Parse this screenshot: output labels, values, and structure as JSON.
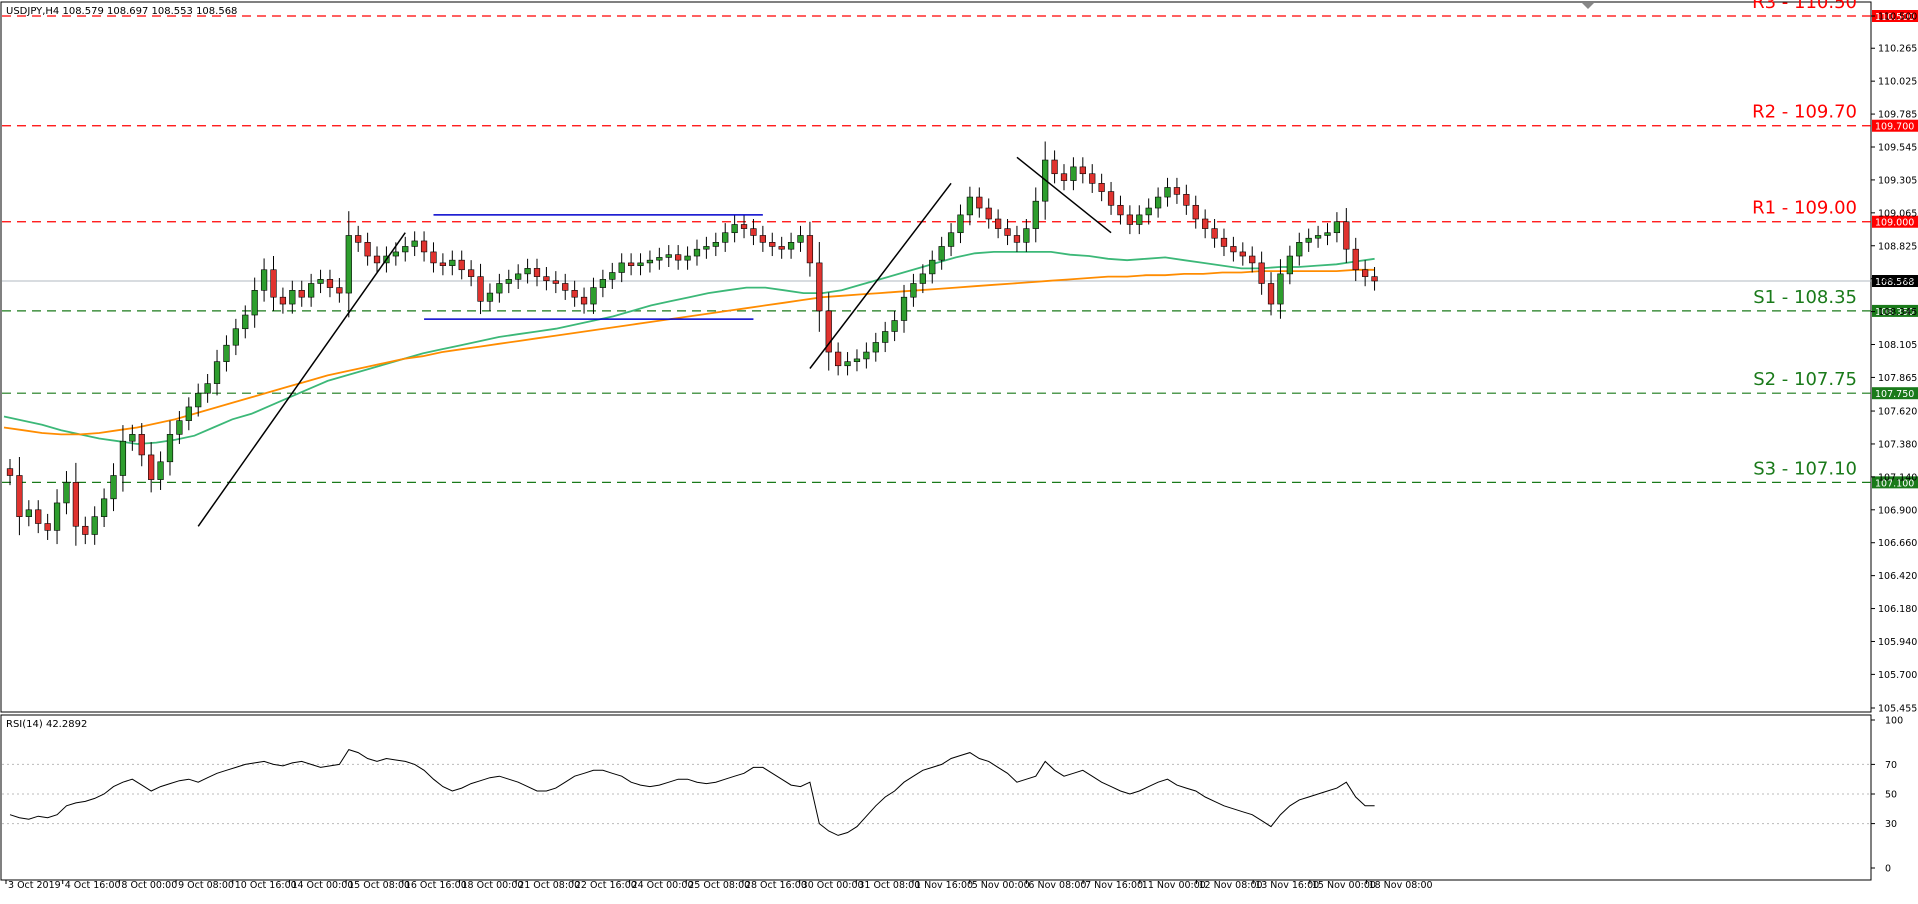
{
  "window": {
    "title": "USDJPY,H4  108.579 108.697 108.553 108.568",
    "rsi_title": "RSI(14) 42.2892"
  },
  "colors": {
    "bull": "#2e9e2e",
    "bear": "#e0332f",
    "resistance": "#ff0000",
    "support": "#1a7a1a",
    "ma_fast": "#3cb878",
    "ma_slow": "#ff8c00",
    "channel": "#0000cc",
    "trendline": "#000000",
    "rsi": "#000000"
  },
  "chart_data": [
    {
      "type": "candlestick",
      "symbol": "USDJPY",
      "timeframe": "H4",
      "title": "USDJPY,H4  108.579 108.697 108.553 108.568",
      "ylim": [
        105.455,
        110.5
      ],
      "yticks": [
        "110.500",
        "110.265",
        "110.025",
        "109.785",
        "109.545",
        "109.305",
        "109.065",
        "108.825",
        "108.585",
        "108.345",
        "108.105",
        "107.865",
        "107.620",
        "107.380",
        "107.140",
        "106.900",
        "106.660",
        "106.420",
        "106.180",
        "105.940",
        "105.700",
        "105.455"
      ],
      "xticks": [
        "3 Oct 2019",
        "4 Oct 16:00",
        "8 Oct 00:00",
        "9 Oct 08:00",
        "10 Oct 16:00",
        "14 Oct 00:00",
        "15 Oct 08:00",
        "16 Oct 16:00",
        "18 Oct 00:00",
        "21 Oct 08:00",
        "22 Oct 16:00",
        "24 Oct 00:00",
        "25 Oct 08:00",
        "28 Oct 16:00",
        "30 Oct 00:00",
        "31 Oct 08:00",
        "1 Nov 16:00",
        "5 Nov 00:00",
        "6 Nov 08:00",
        "7 Nov 16:00",
        "11 Nov 00:00",
        "12 Nov 08:00",
        "13 Nov 16:00",
        "15 Nov 00:00",
        "18 Nov 08:00"
      ],
      "current_price": "108.568",
      "close_series": [
        107.15,
        106.85,
        106.9,
        106.8,
        106.75,
        106.95,
        107.1,
        106.78,
        106.72,
        106.85,
        106.98,
        107.15,
        107.4,
        107.45,
        107.3,
        107.12,
        107.25,
        107.45,
        107.55,
        107.65,
        107.75,
        107.82,
        107.98,
        108.1,
        108.22,
        108.32,
        108.5,
        108.65,
        108.45,
        108.4,
        108.5,
        108.45,
        108.55,
        108.58,
        108.52,
        108.48,
        108.9,
        108.85,
        108.75,
        108.7,
        108.75,
        108.78,
        108.82,
        108.86,
        108.78,
        108.7,
        108.68,
        108.72,
        108.65,
        108.6,
        108.42,
        108.48,
        108.55,
        108.58,
        108.62,
        108.66,
        108.6,
        108.57,
        108.55,
        108.5,
        108.45,
        108.4,
        108.52,
        108.58,
        108.63,
        108.7,
        108.68,
        108.7,
        108.72,
        108.74,
        108.76,
        108.72,
        108.75,
        108.8,
        108.82,
        108.85,
        108.92,
        108.98,
        108.95,
        108.9,
        108.85,
        108.82,
        108.8,
        108.85,
        108.9,
        108.7,
        108.35,
        108.05,
        107.95,
        107.98,
        108.0,
        108.05,
        108.12,
        108.2,
        108.28,
        108.45,
        108.55,
        108.62,
        108.72,
        108.82,
        108.92,
        109.05,
        109.18,
        109.1,
        109.02,
        108.95,
        108.9,
        108.85,
        108.95,
        109.15,
        109.45,
        109.35,
        109.3,
        109.4,
        109.35,
        109.28,
        109.22,
        109.12,
        109.05,
        108.98,
        109.05,
        109.1,
        109.18,
        109.25,
        109.2,
        109.12,
        109.02,
        108.95,
        108.88,
        108.82,
        108.78,
        108.75,
        108.7,
        108.55,
        108.4,
        108.62,
        108.75,
        108.85,
        108.88,
        108.9,
        108.92,
        109.0,
        108.8,
        108.65,
        108.6,
        108.568
      ],
      "series": [
        {
          "name": "",
          "type": "ma",
          "values": [
            107.58,
            107.55,
            107.52,
            107.48,
            107.45,
            107.42,
            107.4,
            107.38,
            107.39,
            107.41,
            107.44,
            107.5,
            107.56,
            107.6,
            107.66,
            107.72,
            107.78,
            107.84,
            107.88,
            107.92,
            107.96,
            108.0,
            108.04,
            108.07,
            108.1,
            108.13,
            108.16,
            108.18,
            108.2,
            108.22,
            108.25,
            108.28,
            108.31,
            108.35,
            108.39,
            108.42,
            108.45,
            108.48,
            108.5,
            108.52,
            108.52,
            108.5,
            108.48,
            108.48,
            108.5,
            108.54,
            108.58,
            108.62,
            108.66,
            108.7,
            108.74,
            108.77,
            108.78,
            108.78,
            108.78,
            108.78,
            108.76,
            108.75,
            108.73,
            108.72,
            108.73,
            108.74,
            108.72,
            108.7,
            108.68,
            108.66,
            108.66,
            108.67,
            108.67,
            108.68,
            108.69,
            108.71,
            108.73
          ]
        },
        {
          "name": "",
          "type": "ma",
          "values": [
            107.5,
            107.48,
            107.46,
            107.45,
            107.45,
            107.46,
            107.48,
            107.5,
            107.53,
            107.56,
            107.6,
            107.64,
            107.68,
            107.72,
            107.76,
            107.8,
            107.84,
            107.88,
            107.91,
            107.94,
            107.97,
            108.0,
            108.02,
            108.05,
            108.07,
            108.09,
            108.11,
            108.13,
            108.15,
            108.17,
            108.19,
            108.21,
            108.23,
            108.25,
            108.27,
            108.29,
            108.31,
            108.33,
            108.35,
            108.37,
            108.39,
            108.41,
            108.43,
            108.45,
            108.46,
            108.47,
            108.48,
            108.49,
            108.5,
            108.51,
            108.52,
            108.53,
            108.54,
            108.55,
            108.56,
            108.57,
            108.58,
            108.59,
            108.6,
            108.6,
            108.61,
            108.61,
            108.62,
            108.62,
            108.63,
            108.63,
            108.64,
            108.64,
            108.64,
            108.64,
            108.64,
            108.65,
            108.65
          ]
        }
      ],
      "levels": [
        {
          "label": "R3 - 110.50",
          "value": 110.5,
          "tag": "110.500",
          "kind": "resistance"
        },
        {
          "label": "R2 - 109.70",
          "value": 109.7,
          "tag": "109.700",
          "kind": "resistance"
        },
        {
          "label": "R1 - 109.00",
          "value": 109.0,
          "tag": "109.000",
          "kind": "resistance"
        },
        {
          "label": "S1 - 108.35",
          "value": 108.35,
          "tag": "108.350",
          "kind": "support"
        },
        {
          "label": "S2 - 107.75",
          "value": 107.75,
          "tag": "107.750",
          "kind": "support"
        },
        {
          "label": "S3 - 107.10",
          "value": 107.1,
          "tag": "107.100",
          "kind": "support"
        }
      ]
    },
    {
      "type": "line",
      "title": "RSI(14) 42.2892",
      "ylim": [
        0,
        100
      ],
      "yticks": [
        "100",
        "70",
        "50",
        "30",
        "0"
      ],
      "reference_lines": [
        70,
        50,
        30
      ],
      "values": [
        36,
        34,
        33,
        35,
        34,
        36,
        42,
        44,
        45,
        47,
        50,
        55,
        58,
        60,
        56,
        52,
        55,
        57,
        59,
        60,
        58,
        61,
        64,
        66,
        68,
        70,
        71,
        72,
        70,
        69,
        71,
        72,
        70,
        68,
        69,
        70,
        80,
        78,
        74,
        72,
        74,
        73,
        72,
        70,
        66,
        60,
        55,
        52,
        54,
        57,
        59,
        61,
        62,
        60,
        58,
        55,
        52,
        52,
        54,
        58,
        62,
        64,
        66,
        66,
        64,
        62,
        58,
        56,
        55,
        56,
        58,
        60,
        60,
        58,
        57,
        58,
        60,
        62,
        64,
        68,
        68,
        64,
        60,
        56,
        55,
        58,
        30,
        25,
        22,
        24,
        28,
        35,
        42,
        48,
        52,
        58,
        62,
        66,
        68,
        70,
        74,
        76,
        78,
        74,
        72,
        68,
        64,
        58,
        60,
        62,
        72,
        66,
        62,
        64,
        66,
        62,
        58,
        55,
        52,
        50,
        52,
        55,
        58,
        60,
        56,
        54,
        52,
        48,
        45,
        42,
        40,
        38,
        36,
        32,
        28,
        36,
        42,
        46,
        48,
        50,
        52,
        54,
        58,
        48,
        42,
        42
      ]
    }
  ]
}
